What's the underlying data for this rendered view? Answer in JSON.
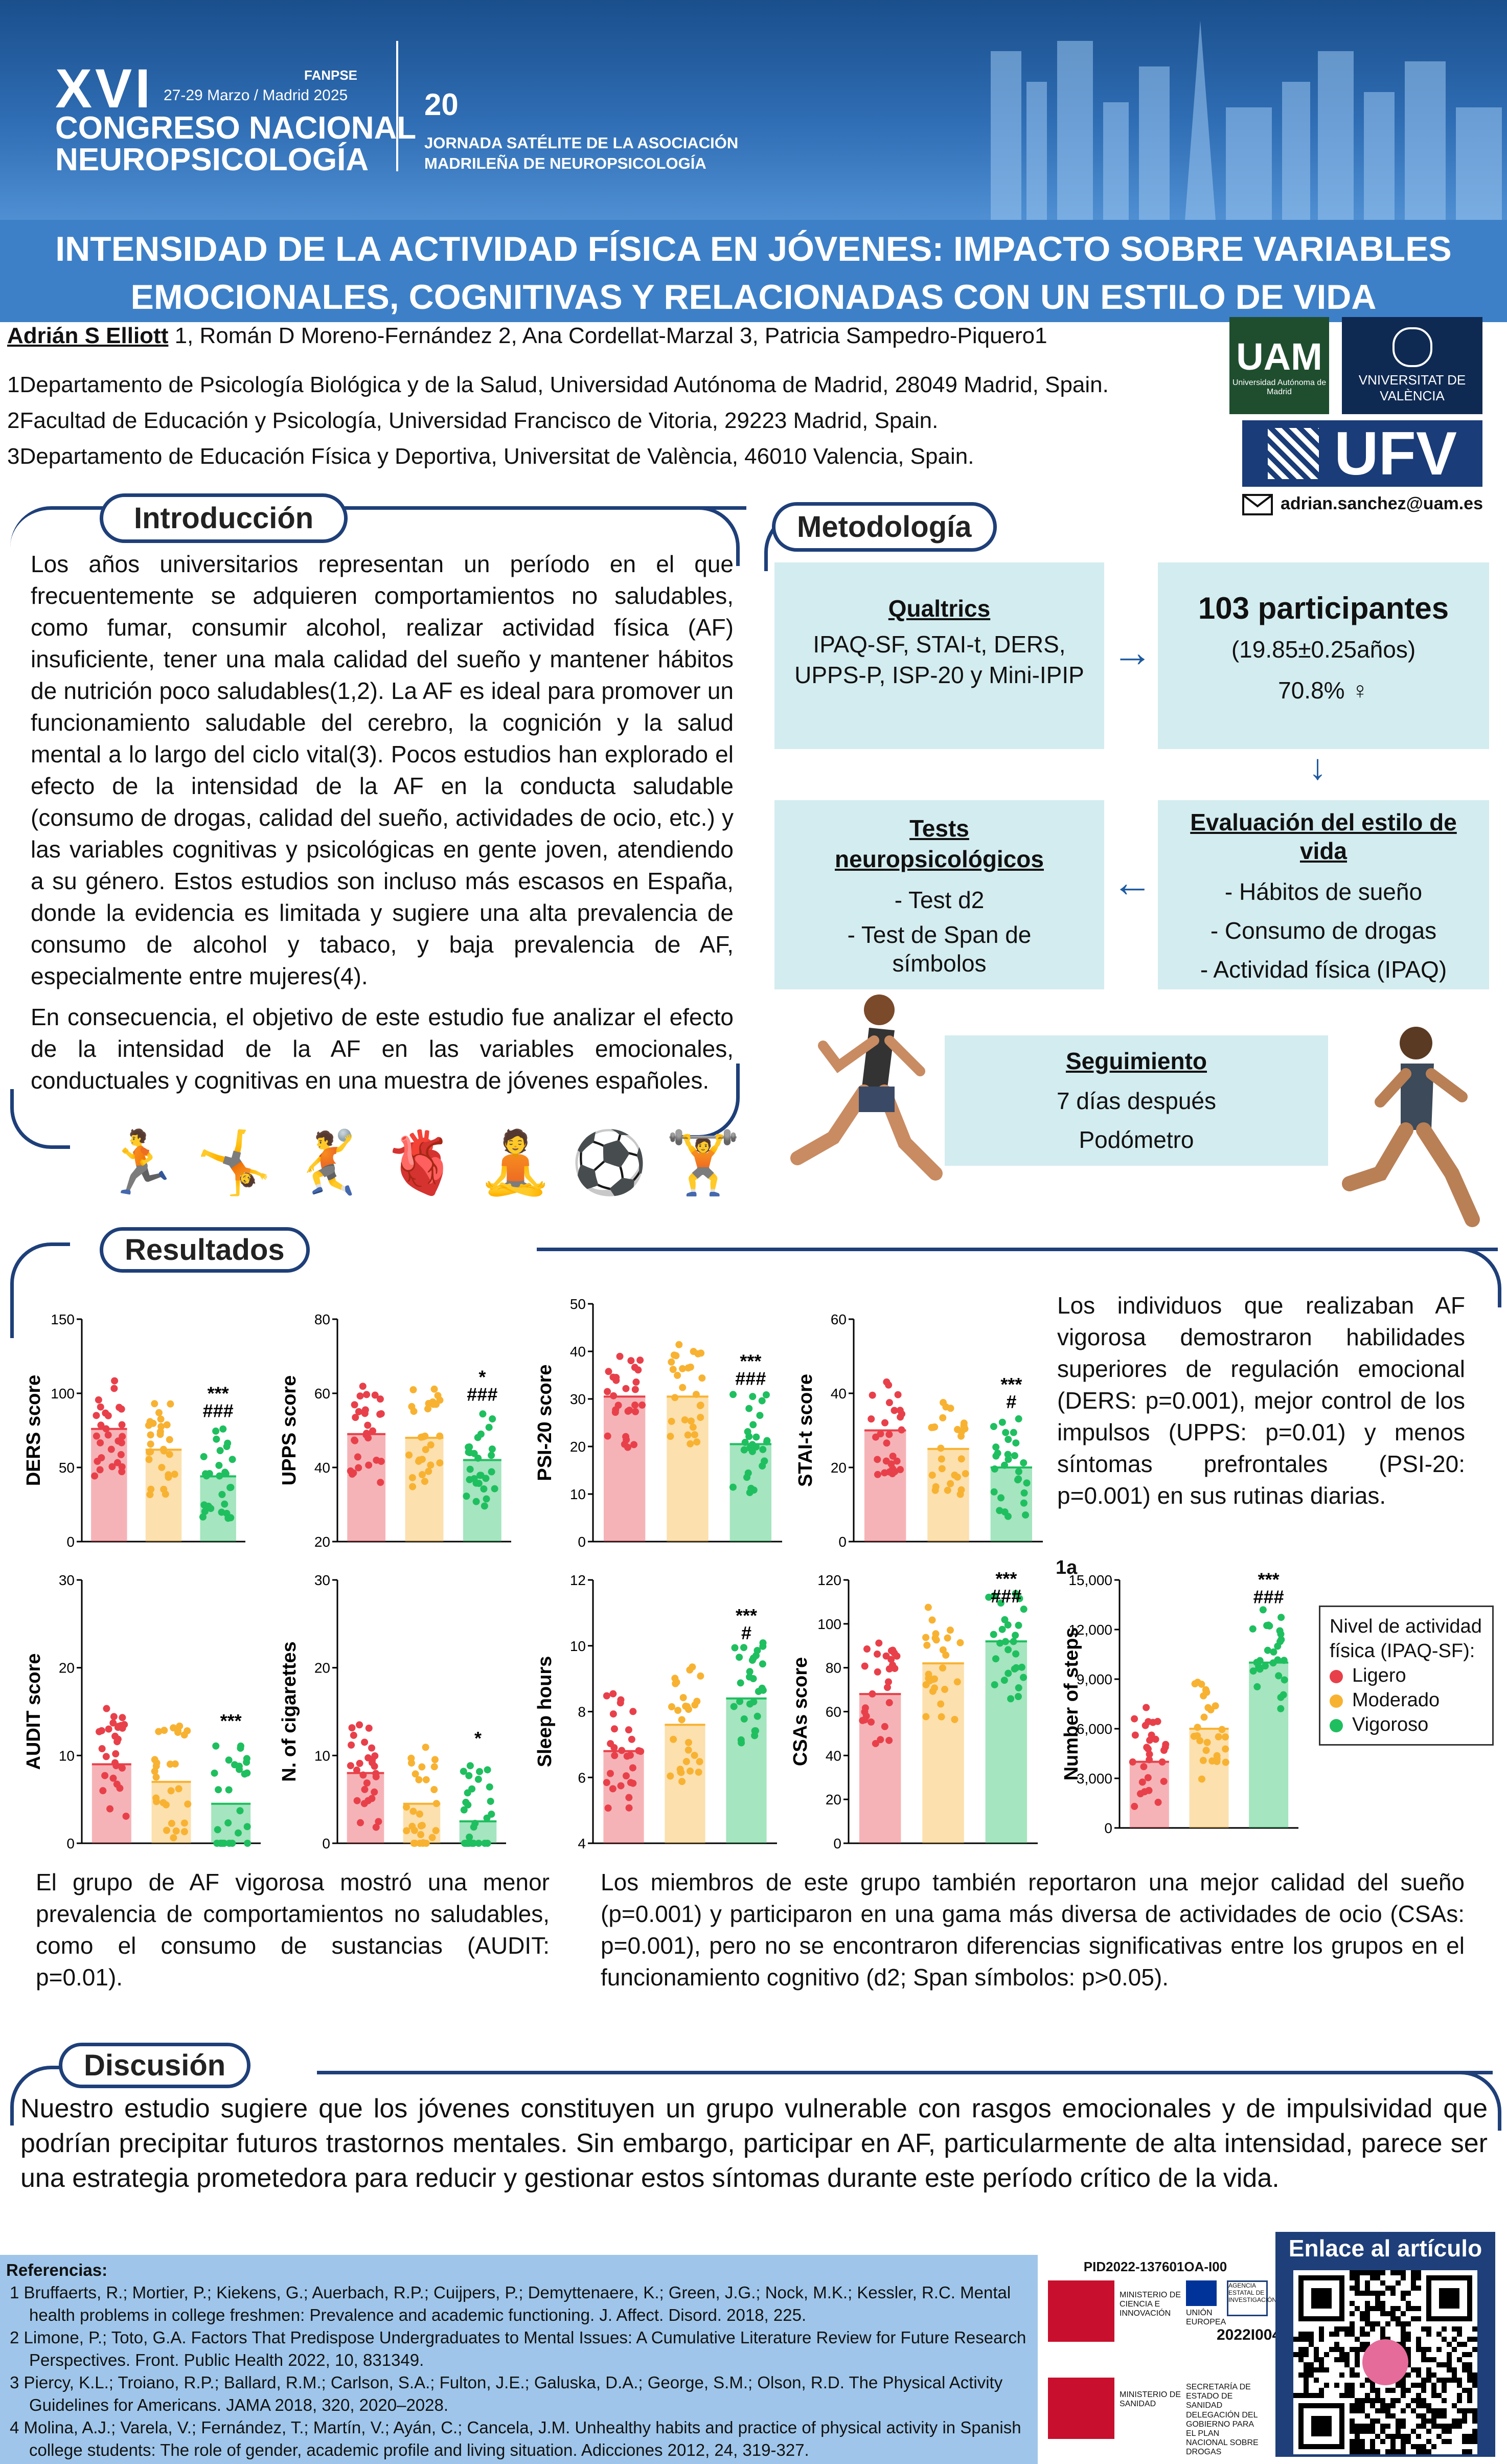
{
  "header": {
    "congress_number": "XVI",
    "dates": "27-29 Marzo / Madrid 2025",
    "fanpse": "FANPSE",
    "congress_line1": "CONGRESO NACIONAL",
    "congress_line2": "NEUROPSICOLOGÍA",
    "satellite_line1": "JORNADA SATÉLITE DE LA ASOCIACIÓN",
    "satellite_line2": "MADRILEÑA DE NEUROPSICOLOGÍA",
    "satellite_badge": "20"
  },
  "title": {
    "line1": "INTENSIDAD DE LA ACTIVIDAD FÍSICA EN JÓVENES: IMPACTO SOBRE VARIABLES",
    "line2": "EMOCIONALES, COGNITIVAS Y RELACIONADAS CON UN ESTILO DE VIDA"
  },
  "authors": {
    "first": "Adrián S Elliott",
    "rest": " 1, Román D Moreno-Fernández 2, Ana Cordellat-Marzal 3, Patricia Sampedro-Piquero1"
  },
  "affiliations": [
    "1Departamento de Psicología Biológica y de la Salud, Universidad Autónoma de Madrid, 28049 Madrid, Spain.",
    "2Facultad de Educación y Psicología, Universidad Francisco de Vitoria, 29223 Madrid, Spain.",
    "3Departamento de Educación Física y Deportiva, Universitat de València, 46010 Valencia, Spain."
  ],
  "logos": {
    "uam": "UAM",
    "uam_sub": "Universidad Autónoma de Madrid",
    "uv": "VNIVERSITAT DE VALÈNCIA",
    "ufv": "UFV"
  },
  "email": "adrian.sanchez@uam.es",
  "intro": {
    "header": "Introducción",
    "p1": "Los años universitarios representan un período en el que frecuentemente se adquieren comportamientos no saludables, como fumar, consumir alcohol, realizar actividad física (AF) insuficiente, tener una mala calidad del sueño y mantener hábitos de nutrición poco saludables(1,2). La AF es ideal para promover un funcionamiento saludable del cerebro, la cognición y la salud mental a lo largo del ciclo vital(3). Pocos estudios han explorado el efecto de la intensidad de la AF en la conducta saludable (consumo de drogas, calidad del sueño, actividades de ocio, etc.) y las variables cognitivas y psicológicas en gente joven, atendiendo a su género. Estos estudios son incluso más escasos en España, donde la evidencia es limitada y sugiere una alta prevalencia de consumo de alcohol y tabaco, y baja prevalencia de AF, especialmente entre mujeres(4).",
    "p2": "En consecuencia, el objetivo de este estudio fue analizar el efecto de la intensidad de la AF en las variables emocionales, conductuales y cognitivas en una muestra de jóvenes españoles."
  },
  "methods": {
    "header": "Metodología",
    "qualtrics_title": "Qualtrics",
    "qualtrics_body": "IPAQ-SF, STAI-t, DERS, UPPS-P, ISP-20 y Mini-IPIP",
    "participants_title": "103 participantes",
    "participants_age": "(19.85±0.25años)",
    "participants_female": "70.8% ♀",
    "tests_title": "Tests neuropsicológicos",
    "tests_item1": "- Test d2",
    "tests_item2": "- Test de Span de símbolos",
    "lifestyle_title": "Evaluación del estilo de vida",
    "lifestyle_item1": "- Hábitos de sueño",
    "lifestyle_item2": "- Consumo de drogas",
    "lifestyle_item3": "- Actividad física (IPAQ)",
    "followup_title": "Seguimiento",
    "followup_line1": "7 días después",
    "followup_line2": "Podómetro"
  },
  "results": {
    "header": "Resultados",
    "text_top": "Los individuos que realizaban AF vigorosa demostraron habilidades superiores de regulación emocional (DERS: p=0.001), mejor control de los impulsos (UPPS: p=0.01) y menos síntomas prefrontales (PSI-20: p=0.001) en sus rutinas diarias.",
    "text_left": "El grupo de AF vigorosa mostró una menor prevalencia de comportamientos no saludables, como el consumo de sustancias (AUDIT: p=0.01).",
    "text_right": "Los miembros de este grupo también reportaron una mejor calidad del sueño (p=0.001) y participaron en una gama más diversa de actividades de ocio (CSAs: p=0.001), pero no se encontraron diferencias significativas entre los grupos en el funcionamiento cognitivo (d2; Span símbolos: p>0.05).",
    "panel_label": "1a",
    "legend_title": "Nivel de actividad física (IPAQ-SF):",
    "legend_items": [
      "Ligero",
      "Moderado",
      "Vigoroso"
    ],
    "colors": {
      "ligero": "#e8404a",
      "moderado": "#f8b232",
      "vigoroso": "#1fbf5f"
    }
  },
  "chart_data": [
    {
      "type": "bar",
      "ylabel": "DERS score",
      "ylim": [
        0,
        150
      ],
      "yticks": [
        "0",
        "50",
        "100",
        "150"
      ],
      "categories": [
        "Ligero",
        "Moderado",
        "Vigoroso"
      ],
      "values": [
        76,
        62,
        44
      ],
      "sig": [
        "***",
        "###"
      ]
    },
    {
      "type": "bar",
      "ylabel": "UPPS score",
      "ylim": [
        20,
        80
      ],
      "yticks": [
        "20",
        "40",
        "60",
        "80"
      ],
      "categories": [
        "Ligero",
        "Moderado",
        "Vigoroso"
      ],
      "values": [
        49,
        48,
        42
      ],
      "sig": [
        "*",
        "###"
      ]
    },
    {
      "type": "bar",
      "ylabel": "PSI-20 score",
      "ylim": [
        0,
        50
      ],
      "yticks": [
        "0",
        "10",
        "20",
        "30",
        "40",
        "50"
      ],
      "categories": [
        "Ligero",
        "Moderado",
        "Vigoroso"
      ],
      "values": [
        30.5,
        30.5,
        20.5
      ],
      "sig": [
        "***",
        "###"
      ]
    },
    {
      "type": "bar",
      "ylabel": "STAI-t score",
      "ylim": [
        0,
        60
      ],
      "yticks": [
        "0",
        "20",
        "40",
        "60"
      ],
      "categories": [
        "Ligero",
        "Moderado",
        "Vigoroso"
      ],
      "values": [
        30,
        25,
        20
      ],
      "sig": [
        "***",
        "#"
      ]
    },
    {
      "type": "bar",
      "ylabel": "AUDIT score",
      "ylim": [
        0,
        30
      ],
      "yticks": [
        "0",
        "10",
        "20",
        "30"
      ],
      "categories": [
        "Ligero",
        "Moderado",
        "Vigoroso"
      ],
      "values": [
        9,
        7,
        4.5
      ],
      "sig": [
        "***"
      ]
    },
    {
      "type": "bar",
      "ylabel": "N. of cigarettes",
      "ylim": [
        0,
        30
      ],
      "yticks": [
        "0",
        "10",
        "20",
        "30"
      ],
      "categories": [
        "Ligero",
        "Moderado",
        "Vigoroso"
      ],
      "values": [
        8,
        4.5,
        2.5
      ],
      "sig": [
        "*"
      ]
    },
    {
      "type": "bar",
      "ylabel": "Sleep hours",
      "ylim": [
        4,
        12
      ],
      "yticks": [
        "4",
        "6",
        "8",
        "10",
        "12"
      ],
      "categories": [
        "Ligero",
        "Moderado",
        "Vigoroso"
      ],
      "values": [
        6.8,
        7.6,
        8.4
      ],
      "sig": [
        "***",
        "#"
      ]
    },
    {
      "type": "bar",
      "ylabel": "CSAs score",
      "ylim": [
        0,
        120
      ],
      "yticks": [
        "0",
        "20",
        "40",
        "60",
        "80",
        "100",
        "120"
      ],
      "categories": [
        "Ligero",
        "Moderado",
        "Vigoroso"
      ],
      "values": [
        68,
        82,
        92
      ],
      "sig": [
        "***",
        "###"
      ]
    },
    {
      "type": "bar",
      "ylabel": "Number of steps",
      "ylim": [
        0,
        15000
      ],
      "yticks": [
        "0",
        "3,000",
        "6,000",
        "9,000",
        "12,000",
        "15,000"
      ],
      "categories": [
        "Ligero",
        "Moderado",
        "Vigoroso"
      ],
      "values": [
        4000,
        6000,
        10000
      ],
      "sig": [
        "***",
        "###"
      ]
    }
  ],
  "discussion": {
    "header": "Discusión",
    "text": "Nuestro estudio sugiere que los jóvenes constituyen un grupo vulnerable con rasgos emocionales y de impulsividad que podrían precipitar futuros trastornos mentales. Sin embargo, participar en AF, particularmente de alta intensidad, parece ser una estrategia prometedora para reducir y gestionar estos síntomas durante este período crítico de la vida."
  },
  "references": {
    "title": "Referencias:",
    "items": [
      "1 Bruffaerts, R.; Mortier, P.; Kiekens, G.; Auerbach, R.P.; Cuijpers, P.; Demyttenaere, K.; Green, J.G.; Nock, M.K.; Kessler, R.C. Mental health problems in college freshmen: Prevalence and academic functioning. J. Affect. Disord. 2018, 225.",
      "2 Limone, P.; Toto, G.A. Factors That Predispose Undergraduates to Mental Issues: A Cumulative Literature Review for Future Research Perspectives. Front. Public Health 2022, 10, 831349.",
      "3 Piercy, K.L.; Troiano, R.P.; Ballard, R.M.; Carlson, S.A.; Fulton, J.E.; Galuska, D.A.; George, S.M.; Olson, R.D. The Physical Activity Guidelines for Americans. JAMA 2018, 320, 2020–2028.",
      "4 Molina, A.J.; Varela, V.; Fernández, T.; Martín, V.; Ayán, C.; Cancela, J.M. Unhealthy habits and practice of physical activity in Spanish college students: The role of gender, academic profile and living situation. Adicciones 2012, 24, 319-327."
    ]
  },
  "funding": {
    "project_id": "PID2022-137601OA-I00",
    "ministry": "MINISTERIO DE CIENCIA E INNOVACIÓN",
    "eu": "UNIÓN EUROPEA",
    "agency": "AGENCIA ESTATAL DE INVESTIGACIÓN",
    "code": "2022I004",
    "ministry2": "MINISTERIO DE SANIDAD",
    "secretaria": "SECRETARÍA DE ESTADO DE SANIDAD",
    "delegacion": "DELEGACIÓN DEL GOBIERNO PARA EL PLAN NACIONAL SOBRE DROGAS"
  },
  "qr": {
    "title": "Enlace al artículo"
  }
}
